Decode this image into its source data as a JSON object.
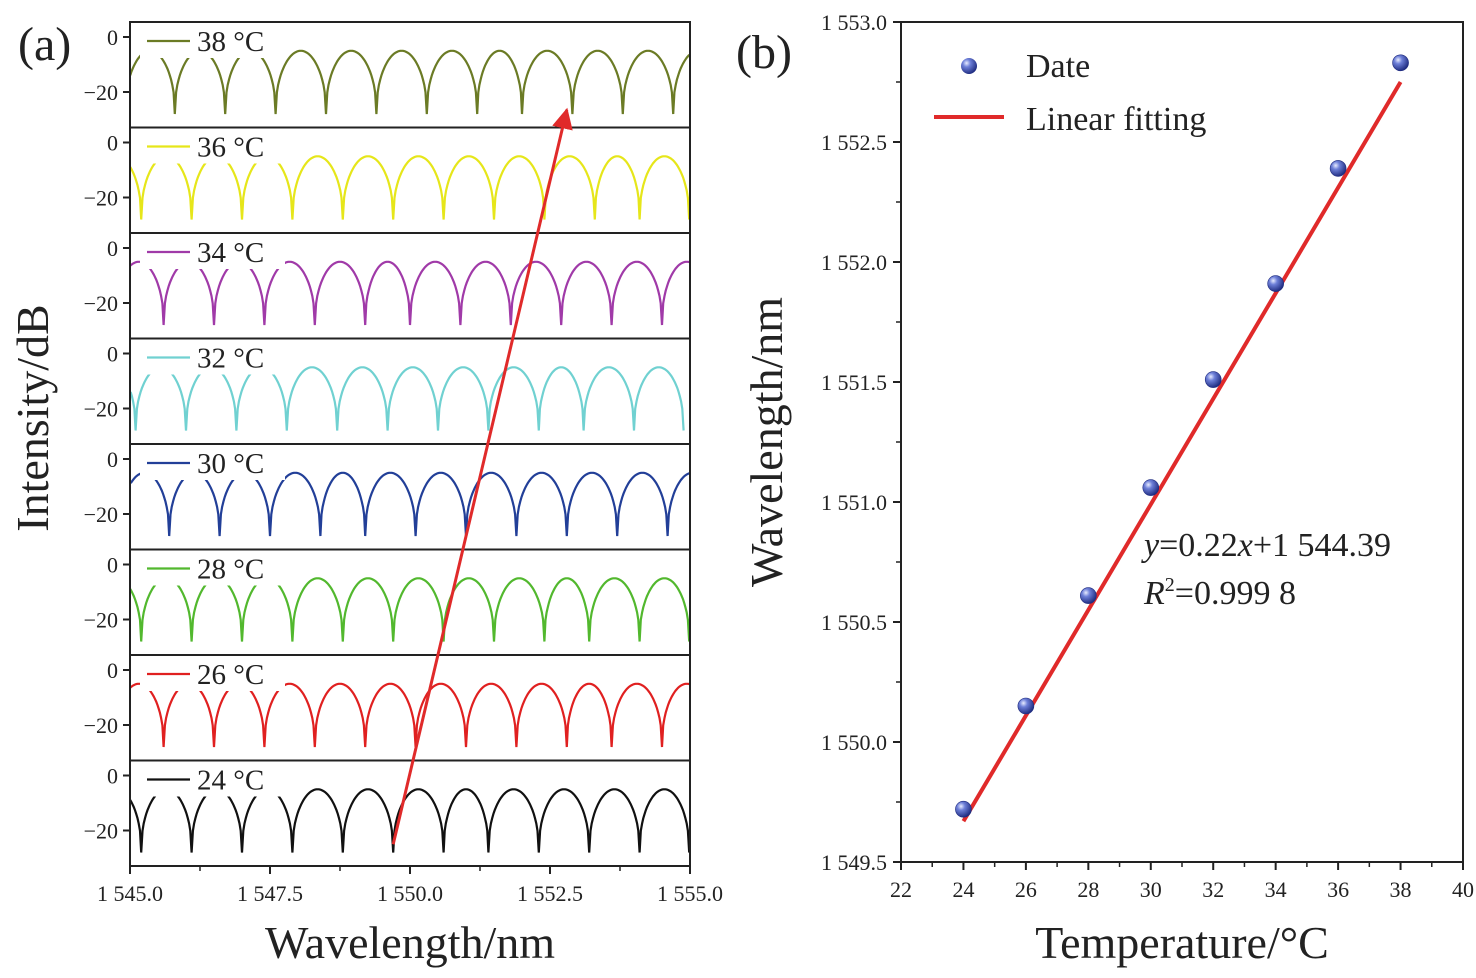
{
  "colors": {
    "t38": "#6b7b25",
    "t36": "#e6e61a",
    "t34": "#a03aa8",
    "t32": "#70d1d1",
    "t30": "#223f98",
    "t28": "#52b82e",
    "t26": "#e02020",
    "t24": "#111111",
    "arrow": "#e02a2a",
    "fit_line": "#e02a2a",
    "marker": "#2f3f9a"
  },
  "chart_data": [
    {
      "panel": "(a)",
      "type": "line",
      "xlabel": "Wavelength/nm",
      "ylabel": "Intensity/dB",
      "xlim": [
        1545.0,
        1555.0
      ],
      "x_tick_labels": [
        "1 545.0",
        "1 547.5",
        "1 550.0",
        "1 552.5",
        "1 555.0"
      ],
      "y_tick_labels": [
        "0",
        "−20"
      ],
      "ylim_per_trace": [
        -28,
        0
      ],
      "shape": "periodic interference dips, period about 0.885 nm, maxima near -5 dB, dips near -28 dB",
      "series": [
        {
          "name": "38 °C",
          "color_key": "t38",
          "dip_wavelengths_nm": [
            1545.8,
            1546.7,
            1547.6,
            1548.5,
            1549.4,
            1550.3,
            1551.2,
            1552.0,
            1552.9,
            1553.8,
            1554.7
          ]
        },
        {
          "name": "36 °C",
          "color_key": "t36",
          "dip_wavelengths_nm": [
            1545.2,
            1546.1,
            1547.0,
            1547.9,
            1548.8,
            1549.7,
            1550.6,
            1551.5,
            1552.4,
            1553.3,
            1554.1
          ]
        },
        {
          "name": "34 °C",
          "color_key": "t34",
          "dip_wavelengths_nm": [
            1545.6,
            1546.5,
            1547.4,
            1548.3,
            1549.2,
            1550.0,
            1550.9,
            1551.8,
            1552.7,
            1553.6,
            1554.5
          ]
        },
        {
          "name": "32 °C",
          "color_key": "t32",
          "dip_wavelengths_nm": [
            1545.1,
            1546.0,
            1546.9,
            1547.8,
            1548.7,
            1549.6,
            1550.5,
            1551.4,
            1552.3,
            1553.1,
            1554.0
          ]
        },
        {
          "name": "30 °C",
          "color_key": "t30",
          "dip_wavelengths_nm": [
            1545.7,
            1546.6,
            1547.5,
            1548.4,
            1549.2,
            1550.1,
            1551.0,
            1551.9,
            1552.8,
            1553.7,
            1554.6
          ]
        },
        {
          "name": "28 °C",
          "color_key": "t28",
          "dip_wavelengths_nm": [
            1545.2,
            1546.1,
            1547.0,
            1547.9,
            1548.8,
            1549.7,
            1550.6,
            1551.5,
            1552.4,
            1553.2,
            1554.1
          ]
        },
        {
          "name": "26 °C",
          "color_key": "t26",
          "dip_wavelengths_nm": [
            1545.6,
            1546.5,
            1547.4,
            1548.3,
            1549.2,
            1550.1,
            1551.0,
            1551.9,
            1552.8,
            1553.6,
            1554.5
          ]
        },
        {
          "name": "24 °C",
          "color_key": "t24",
          "dip_wavelengths_nm": [
            1545.2,
            1546.1,
            1547.0,
            1547.9,
            1548.8,
            1549.7,
            1550.6,
            1551.4,
            1552.3,
            1553.2,
            1554.1
          ]
        }
      ],
      "annotation": {
        "type": "arrow",
        "from": {
          "series": "24 °C",
          "wavelength_nm": 1549.7,
          "intensity_db": -25
        },
        "to": {
          "series": "38 °C",
          "wavelength_nm": 1552.8,
          "intensity_db": -25
        }
      }
    },
    {
      "panel": "(b)",
      "type": "scatter",
      "xlabel": "Temperature/°C",
      "ylabel": "Wavelength/nm",
      "xlim": [
        22,
        40
      ],
      "ylim": [
        1549.5,
        1553.0
      ],
      "x_ticks": [
        22,
        24,
        26,
        28,
        30,
        32,
        34,
        36,
        38,
        40
      ],
      "y_tick_labels": [
        "1 549.5",
        "1 550.0",
        "1 550.5",
        "1 551.0",
        "1 551.5",
        "1 552.0",
        "1 552.5",
        "1 553.0"
      ],
      "legend": {
        "position": "top-left",
        "entries": [
          "Date",
          "Linear fitting"
        ]
      },
      "series": [
        {
          "name": "Date",
          "kind": "points",
          "x": [
            24,
            26,
            28,
            30,
            32,
            34,
            36,
            38
          ],
          "y": [
            1549.72,
            1550.15,
            1550.61,
            1551.06,
            1551.51,
            1551.91,
            1552.39,
            1552.83
          ]
        },
        {
          "name": "Linear fitting",
          "kind": "line",
          "slope": 0.22,
          "intercept": 1544.39,
          "x_range": [
            24,
            38
          ]
        }
      ],
      "equation": {
        "y_italic": "y",
        "after_y": "=0.22",
        "x_italic": "x",
        "after_x": "+1 544.39",
        "r_italic": "R",
        "r_sup": "2",
        "after_r": "=0.999 8"
      }
    }
  ]
}
